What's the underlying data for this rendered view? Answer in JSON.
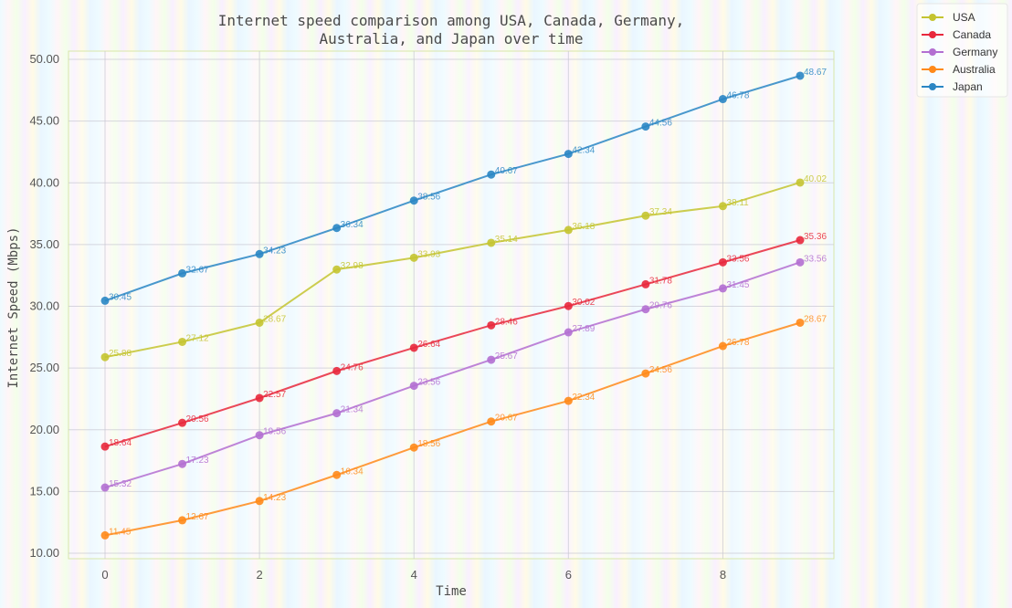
{
  "chart_data": {
    "type": "line",
    "title_lines": [
      "Internet speed comparison among USA, Canada, Germany,",
      "Australia, and Japan over time"
    ],
    "xlabel": "Time",
    "ylabel": "Internet Speed (Mbps)",
    "xlim": [
      -0.5,
      9.5
    ],
    "ylim": [
      10,
      50
    ],
    "x_ticks": [
      0,
      2,
      4,
      6,
      8
    ],
    "y_ticks": [
      10,
      15,
      20,
      25,
      30,
      35,
      40,
      45,
      50
    ],
    "y_tick_labels": [
      "10.00",
      "15.00",
      "20.00",
      "25.00",
      "30.00",
      "35.00",
      "40.00",
      "45.00",
      "50.00"
    ],
    "grid": true,
    "legend_position": "top-right",
    "x": [
      0,
      1,
      2,
      3,
      4,
      5,
      6,
      7,
      8,
      9
    ],
    "series": [
      {
        "name": "USA",
        "color": "#c4c430",
        "values": [
          25.88,
          27.12,
          28.67,
          32.98,
          33.93,
          35.14,
          36.18,
          37.34,
          38.11,
          40.02
        ]
      },
      {
        "name": "Canada",
        "color": "#e8283c",
        "values": [
          18.64,
          20.56,
          22.57,
          24.76,
          26.64,
          28.46,
          30.02,
          31.78,
          33.56,
          35.36
        ]
      },
      {
        "name": "Germany",
        "color": "#b36fd1",
        "values": [
          15.32,
          17.23,
          19.56,
          21.34,
          23.56,
          25.67,
          27.89,
          29.76,
          31.45,
          33.56
        ]
      },
      {
        "name": "Australia",
        "color": "#ff8a1a",
        "values": [
          11.45,
          12.67,
          14.23,
          16.34,
          18.56,
          20.67,
          22.34,
          24.56,
          26.78,
          28.67
        ]
      },
      {
        "name": "Japan",
        "color": "#2a86c4",
        "values": [
          30.45,
          32.67,
          34.23,
          36.34,
          38.56,
          40.67,
          42.34,
          44.56,
          46.78,
          48.67
        ]
      }
    ],
    "data_labels": [
      [
        "25.88",
        "27.12",
        "28.67",
        "32.98",
        "33.93",
        "35.14",
        "36.18",
        "37.34",
        "38.11",
        "40.02"
      ],
      [
        "18.64",
        "20.56",
        "22.57",
        "24.76",
        "26.64",
        "28.46",
        "30.02",
        "31.78",
        "33.56",
        "35.36"
      ],
      [
        "15.32",
        "17.23",
        "19.56",
        "21.34",
        "23.56",
        "25.67",
        "27.89",
        "29.76",
        "31.45",
        "33.56"
      ],
      [
        "11.45",
        "12.67",
        "14.23",
        "16.34",
        "18.56",
        "20.67",
        "22.34",
        "24.56",
        "26.78",
        "28.67"
      ],
      [
        "30.45",
        "32.67",
        "34.23",
        "36.34",
        "38.56",
        "40.67",
        "42.34",
        "44.56",
        "46.78",
        "48.67"
      ]
    ]
  }
}
